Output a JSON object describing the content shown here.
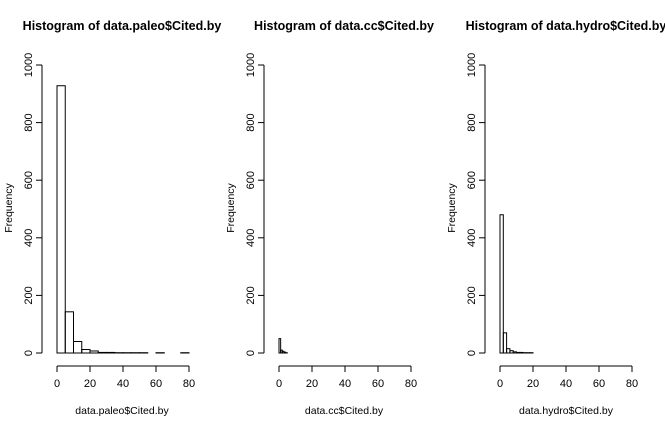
{
  "chart_data": [
    {
      "type": "bar",
      "subtype": "histogram",
      "title": "Histogram of data.paleo$Cited.by",
      "xlabel": "data.paleo$Cited.by",
      "ylabel": "Frequency",
      "xlim": [
        0,
        80
      ],
      "ylim": [
        0,
        1000
      ],
      "xticks": [
        "0",
        "20",
        "40",
        "60",
        "80"
      ],
      "yticks": [
        "0",
        "200",
        "400",
        "600",
        "800",
        "1000"
      ],
      "bins": [
        [
          0,
          5
        ],
        [
          5,
          10
        ],
        [
          10,
          15
        ],
        [
          15,
          20
        ],
        [
          20,
          25
        ],
        [
          25,
          30
        ],
        [
          30,
          35
        ],
        [
          35,
          40
        ],
        [
          40,
          45
        ],
        [
          45,
          50
        ],
        [
          50,
          55
        ],
        [
          55,
          60
        ],
        [
          60,
          65
        ],
        [
          65,
          70
        ],
        [
          70,
          75
        ],
        [
          75,
          80
        ]
      ],
      "values": [
        928,
        143,
        40,
        12,
        7,
        2,
        2,
        1,
        1,
        1,
        1,
        0,
        1,
        0,
        0,
        1
      ]
    },
    {
      "type": "bar",
      "subtype": "histogram",
      "title": "Histogram of data.cc$Cited.by",
      "xlabel": "data.cc$Cited.by",
      "ylabel": "Frequency",
      "xlim": [
        0,
        80
      ],
      "ylim": [
        0,
        1000
      ],
      "xticks": [
        "0",
        "20",
        "40",
        "60",
        "80"
      ],
      "yticks": [
        "0",
        "200",
        "400",
        "600",
        "800",
        "1000"
      ],
      "bins": [
        [
          0,
          1
        ],
        [
          1,
          2
        ],
        [
          2,
          3
        ],
        [
          3,
          4
        ],
        [
          4,
          5
        ]
      ],
      "values": [
        50,
        10,
        6,
        3,
        1
      ]
    },
    {
      "type": "bar",
      "subtype": "histogram",
      "title": "Histogram of data.hydro$Cited.by",
      "xlabel": "data.hydro$Cited.by",
      "ylabel": "Frequency",
      "xlim": [
        0,
        80
      ],
      "ylim": [
        0,
        1000
      ],
      "xticks": [
        "0",
        "20",
        "40",
        "60",
        "80"
      ],
      "yticks": [
        "0",
        "200",
        "400",
        "600",
        "800",
        "1000"
      ],
      "bins": [
        [
          0,
          2
        ],
        [
          2,
          4
        ],
        [
          4,
          6
        ],
        [
          6,
          8
        ],
        [
          8,
          10
        ],
        [
          10,
          12
        ],
        [
          12,
          14
        ],
        [
          14,
          16
        ],
        [
          16,
          18
        ],
        [
          18,
          20
        ]
      ],
      "values": [
        480,
        70,
        15,
        8,
        4,
        2,
        2,
        1,
        1,
        1
      ]
    }
  ]
}
